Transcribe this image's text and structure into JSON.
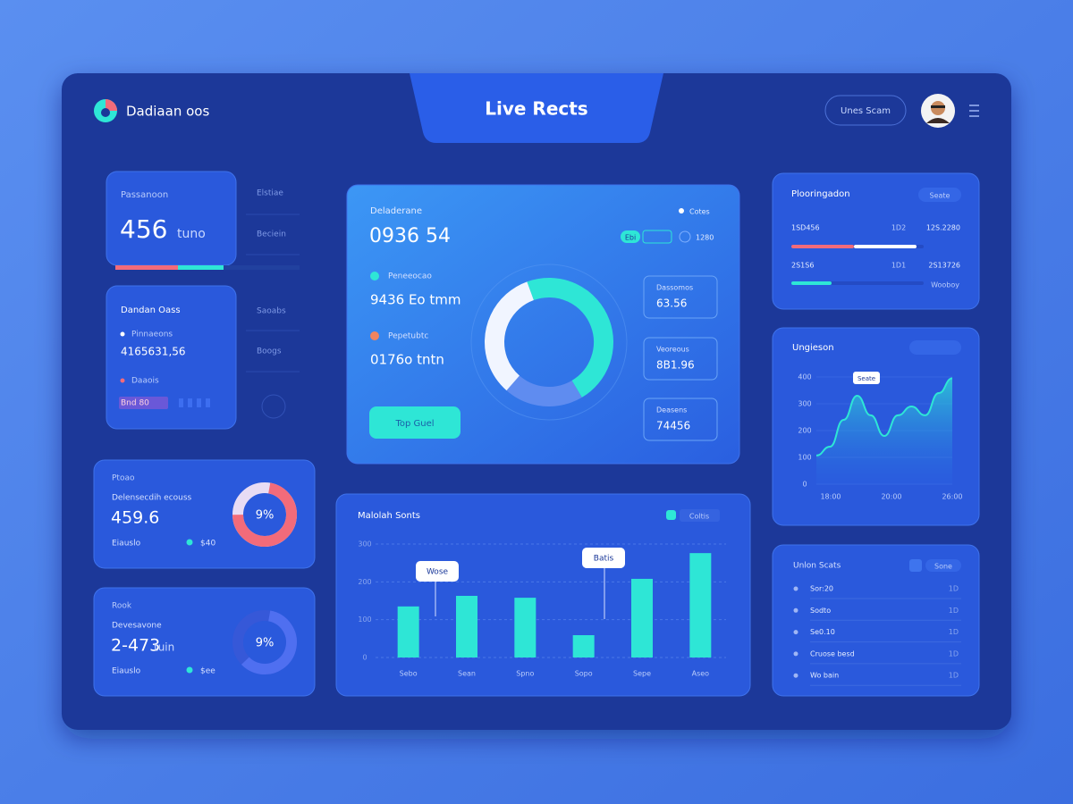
{
  "header": {
    "logo_text": "Dadiaan oos",
    "title": "Live Rects",
    "button": "Unes Scam"
  },
  "left": {
    "stat_card": {
      "label": "Passanoon",
      "value": "456",
      "unit": "tuno"
    },
    "side_labels": [
      "Elstiae",
      "Beciein",
      "Saoabs",
      "Boogs"
    ],
    "list_card": {
      "title": "Dandan Oass",
      "items": [
        {
          "label": "Pinnaeons",
          "value": "4165631,56"
        },
        {
          "label": "Daaois",
          "value": "Bnd 80"
        }
      ]
    },
    "donut_cards": [
      {
        "label": "Ptoao",
        "sublabel": "Delensecdih ecouss",
        "value": "459.6",
        "footer": "Eiauslo",
        "footer_value": "$40",
        "percent_label": "9%"
      },
      {
        "label": "Rook",
        "sublabel": "Devesavone",
        "value": "2-473",
        "unit": "tuin",
        "footer": "Eiauslo",
        "footer_value": "$ee",
        "percent_label": "9%"
      }
    ]
  },
  "center_card": {
    "label": "Deladerane",
    "value": "0936 54",
    "legend_tag": "Cotes",
    "chips": [
      "Ebi",
      "1280"
    ],
    "metrics": [
      {
        "label": "Peneeocao",
        "value": "9436 Eo tmm"
      },
      {
        "label": "Pepetubtc",
        "value": "0176o tntn"
      }
    ],
    "button": "Top Guel",
    "donut": {
      "values": [
        47,
        20,
        33
      ],
      "colors": [
        "#2ee6d6",
        "#5f8cf0",
        "#f1f5ff"
      ]
    },
    "boxes": [
      {
        "label": "Dassomos",
        "value": "63.56"
      },
      {
        "label": "Veoreous",
        "value": "8B1.96"
      },
      {
        "label": "Deasens",
        "value": "74456"
      }
    ]
  },
  "bar_card": {
    "title": "Malolah Sonts",
    "legend": "Coltis",
    "ylim": [
      0,
      300
    ],
    "yticks": [
      0,
      100,
      200,
      300
    ],
    "categories": [
      "Sebo",
      "Sean",
      "Spno",
      "Sopo",
      "Sepe",
      "Aseo"
    ],
    "values": [
      135,
      163,
      158,
      59,
      208,
      276
    ],
    "color": "#2ee6d6",
    "callouts": [
      "Wose",
      "Batis"
    ]
  },
  "right": {
    "progress_card": {
      "title": "Plooringadon",
      "chip": "Seate",
      "rows": [
        {
          "label": "1SD456",
          "mid": "1D2",
          "value": "12S.2280"
        },
        {
          "label": "2S1S6",
          "mid": "1D1",
          "value": "2S13726"
        }
      ],
      "footer": "Wooboy"
    },
    "area_card": {
      "title": "Ungieson",
      "callout": "Seate",
      "ylim": [
        0,
        400
      ],
      "yticks": [
        0,
        100,
        200,
        300,
        400
      ],
      "x_labels": [
        "18:00",
        "20:00",
        "26:00"
      ],
      "values": [
        107,
        140,
        240,
        330,
        257,
        180,
        257,
        290,
        257,
        340,
        395
      ]
    },
    "list_card": {
      "title": "Unlon Scats",
      "chip": "Sone",
      "rows": [
        {
          "label": "Sor:20",
          "value": "1D"
        },
        {
          "label": "Sodto",
          "value": "1D"
        },
        {
          "label": "Se0.10",
          "value": "1D"
        },
        {
          "label": "Cruose besd",
          "value": "1D"
        },
        {
          "label": "Wo bain",
          "value": "1D"
        }
      ]
    }
  }
}
